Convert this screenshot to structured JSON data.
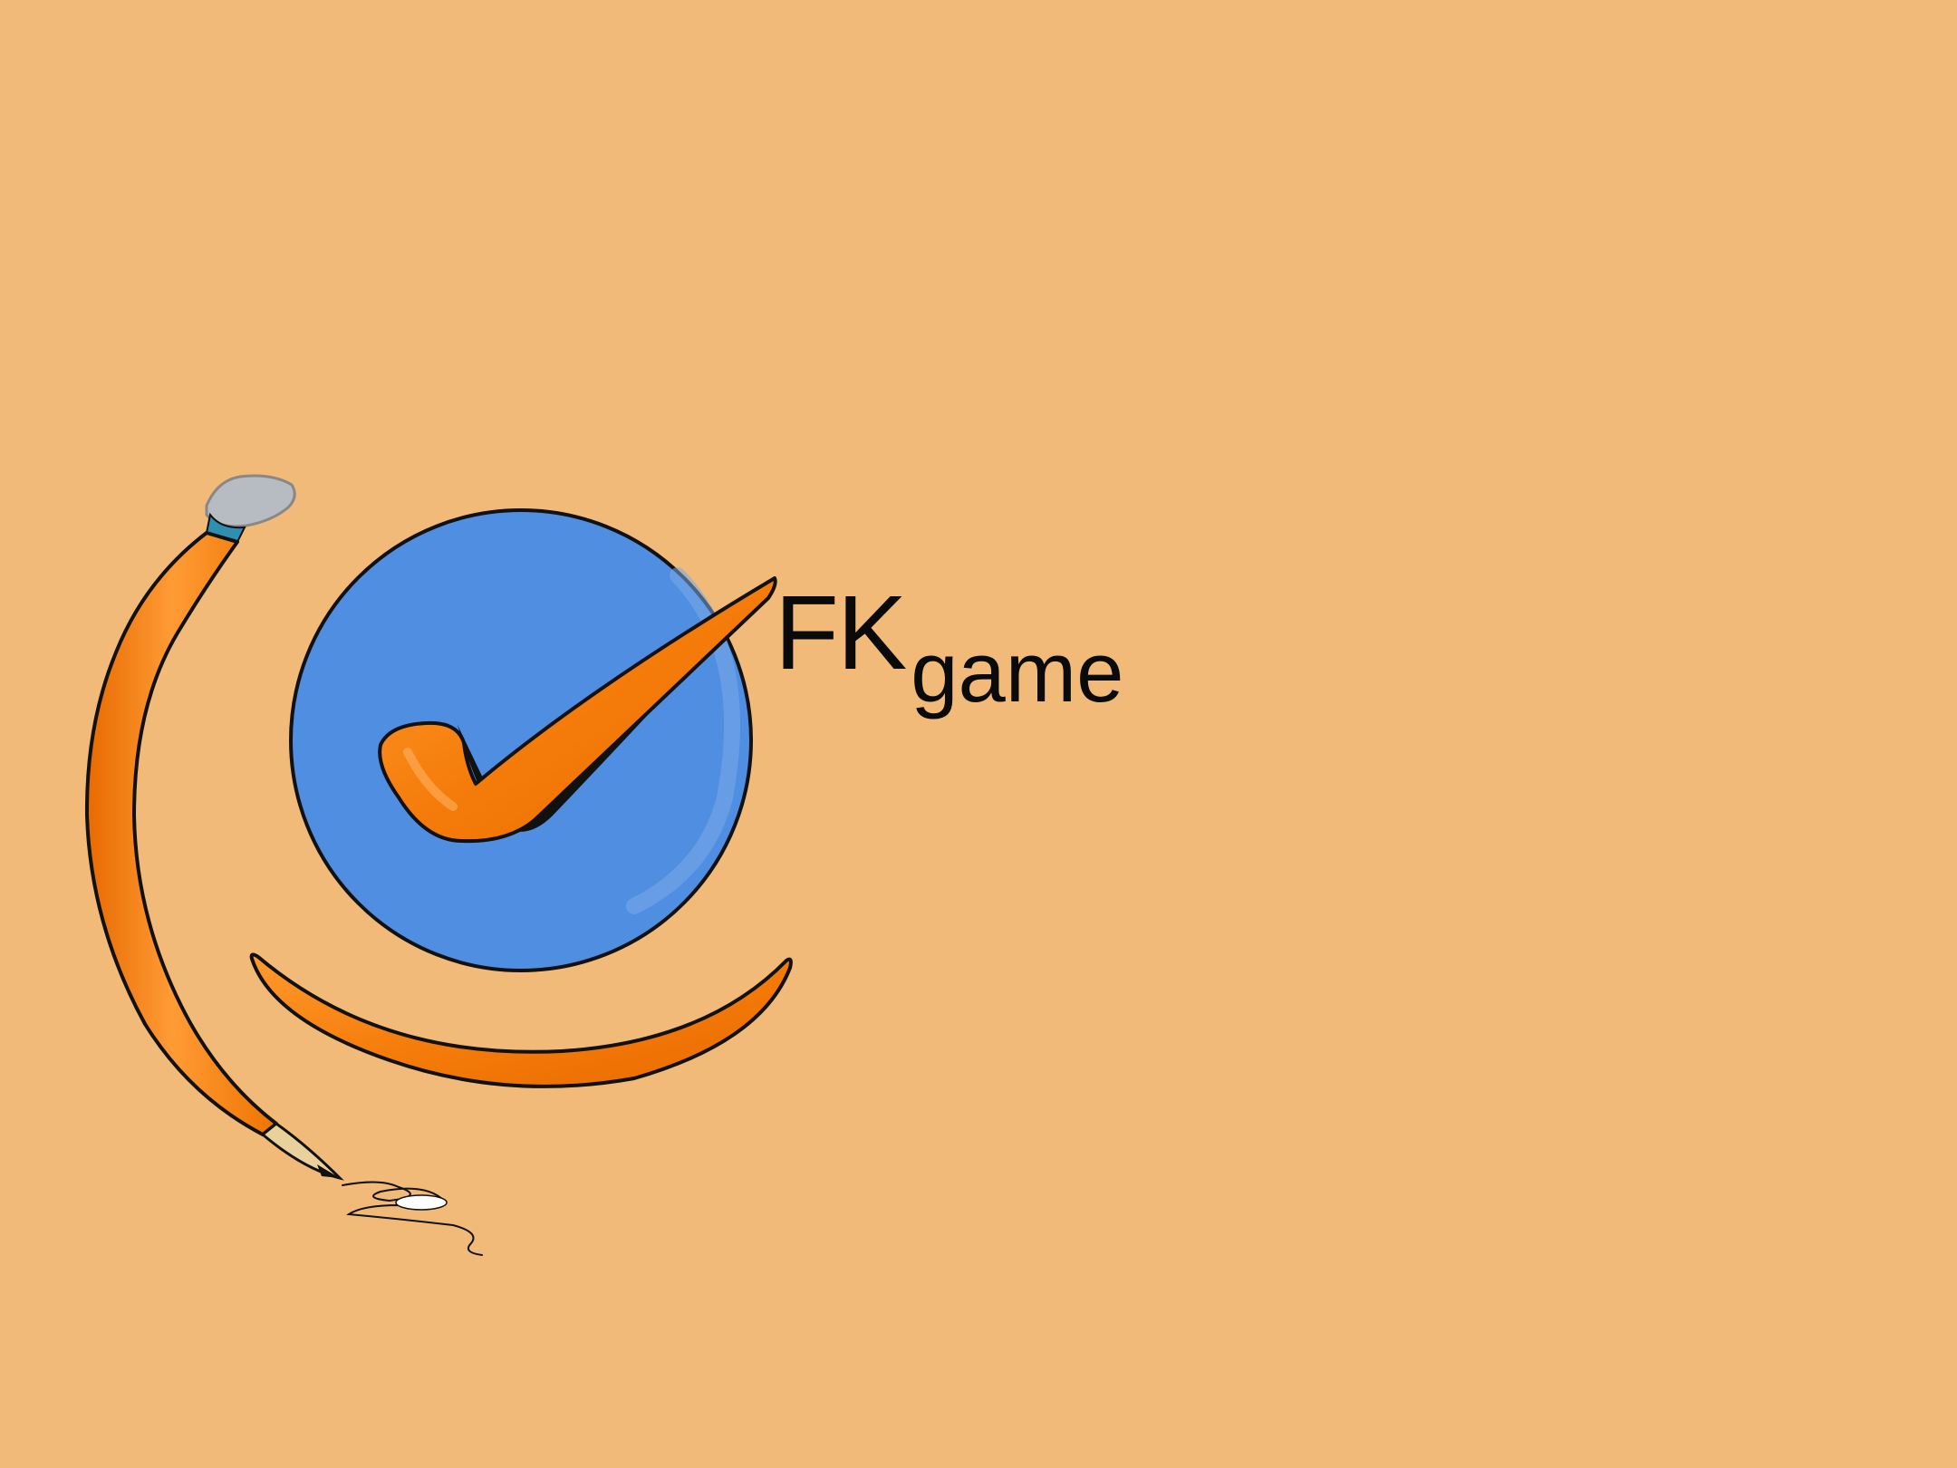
{
  "background_color": "#f1ba79",
  "logo": {
    "icon": "checkmark-circle-logo-icon",
    "pencil_icon": "pencil-icon",
    "colors": {
      "circle": "#4f8ee0",
      "accent_orange": "#f57c0a",
      "outline": "#111111"
    }
  },
  "wordmark": {
    "big": "FK",
    "small": "game"
  }
}
